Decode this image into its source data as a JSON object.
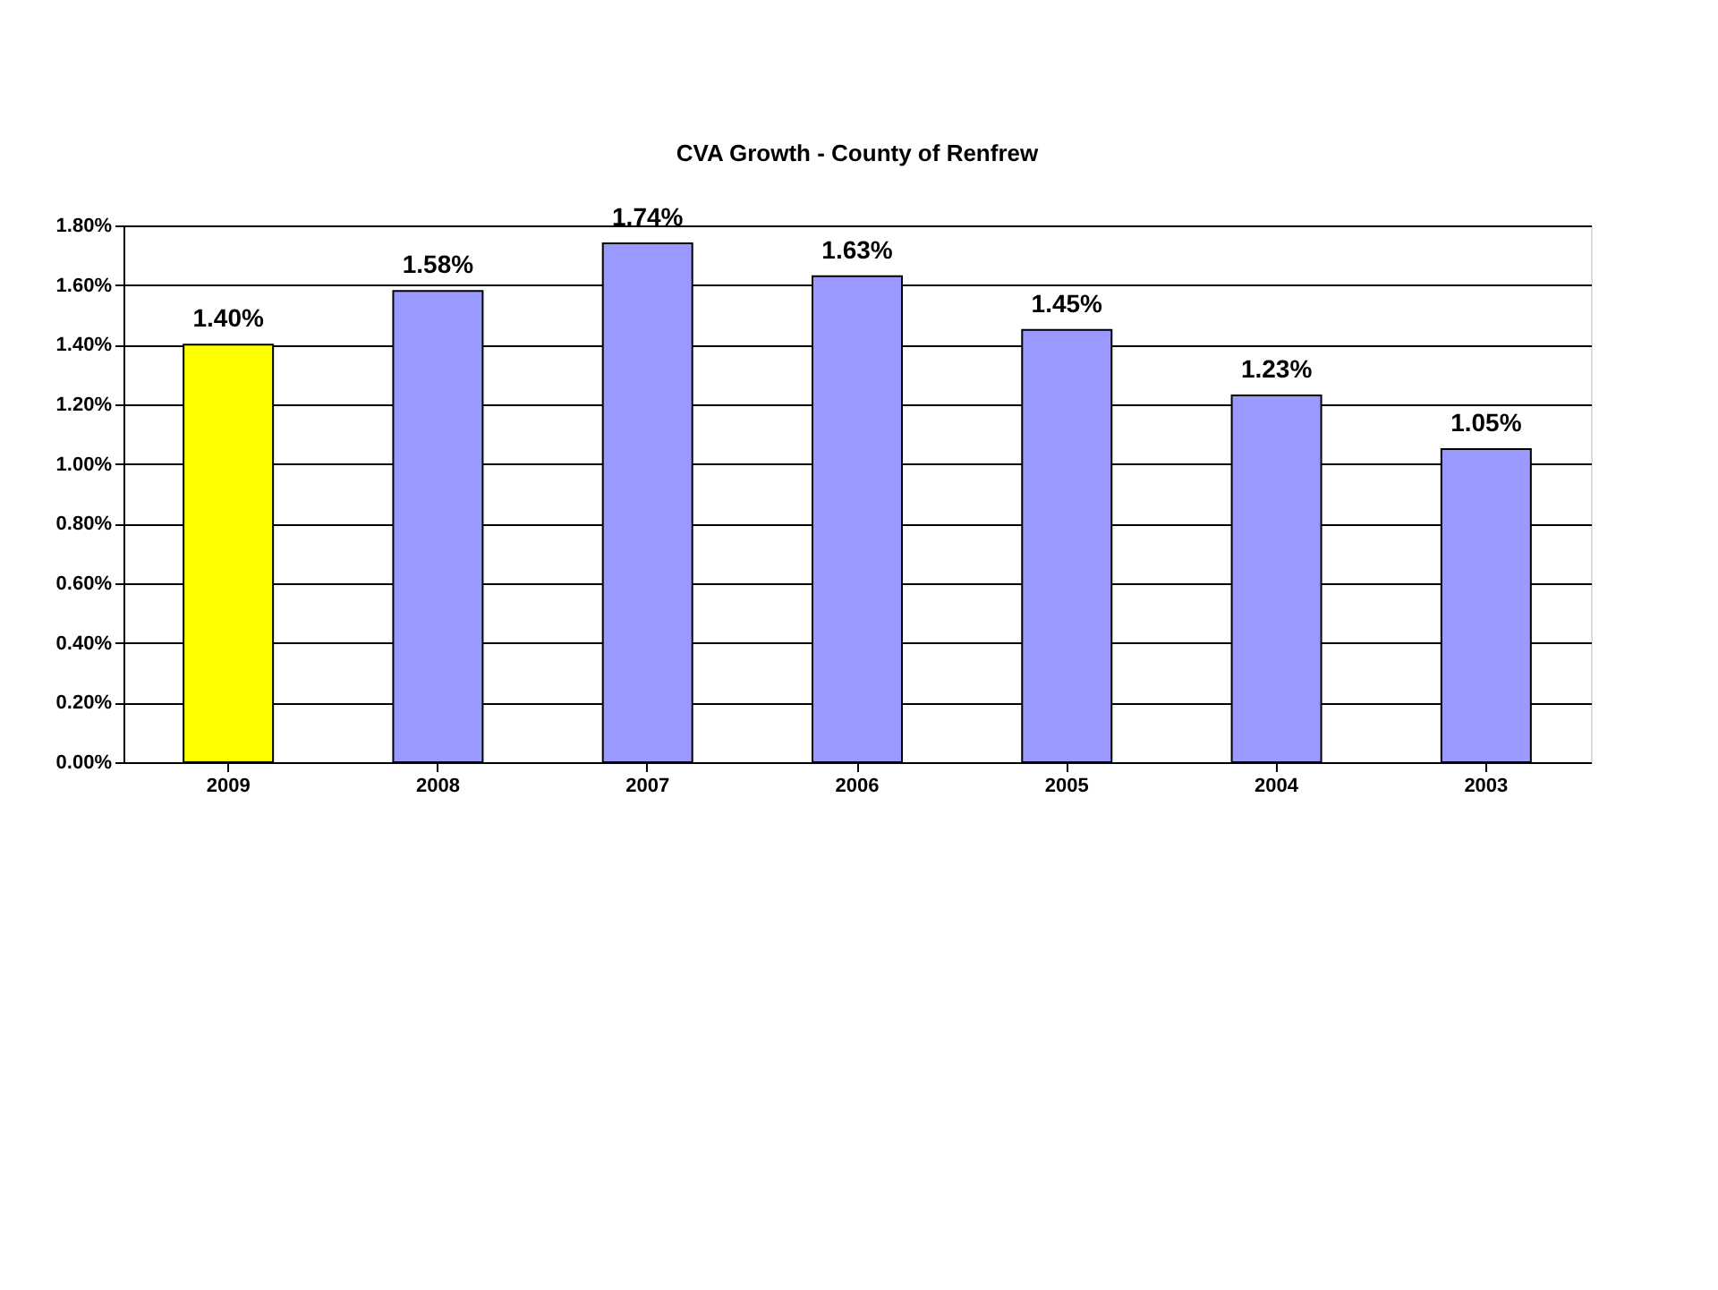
{
  "chart_data": {
    "type": "bar",
    "title": "CVA Growth - County of Renfrew",
    "categories": [
      "2009",
      "2008",
      "2007",
      "2006",
      "2005",
      "2004",
      "2003"
    ],
    "values": [
      1.4,
      1.58,
      1.74,
      1.63,
      1.45,
      1.23,
      1.05
    ],
    "colors": [
      "#ffff00",
      "#9999ff",
      "#9999ff",
      "#9999ff",
      "#9999ff",
      "#9999ff",
      "#9999ff"
    ],
    "value_labels": [
      "1.40%",
      "1.58%",
      "1.74%",
      "1.63%",
      "1.45%",
      "1.23%",
      "1.05%"
    ],
    "ylim": [
      0,
      1.8
    ],
    "yticks": [
      {
        "value": 0,
        "label": "0.00%"
      },
      {
        "value": 0.2,
        "label": "0.20%"
      },
      {
        "value": 0.4,
        "label": "0.40%"
      },
      {
        "value": 0.6,
        "label": "0.60%"
      },
      {
        "value": 0.8,
        "label": "0.80%"
      },
      {
        "value": 1.0,
        "label": "1.00%"
      },
      {
        "value": 1.2,
        "label": "1.20%"
      },
      {
        "value": 1.4,
        "label": "1.40%"
      },
      {
        "value": 1.6,
        "label": "1.60%"
      },
      {
        "value": 1.8,
        "label": "1.80%"
      }
    ],
    "grid": "y"
  }
}
